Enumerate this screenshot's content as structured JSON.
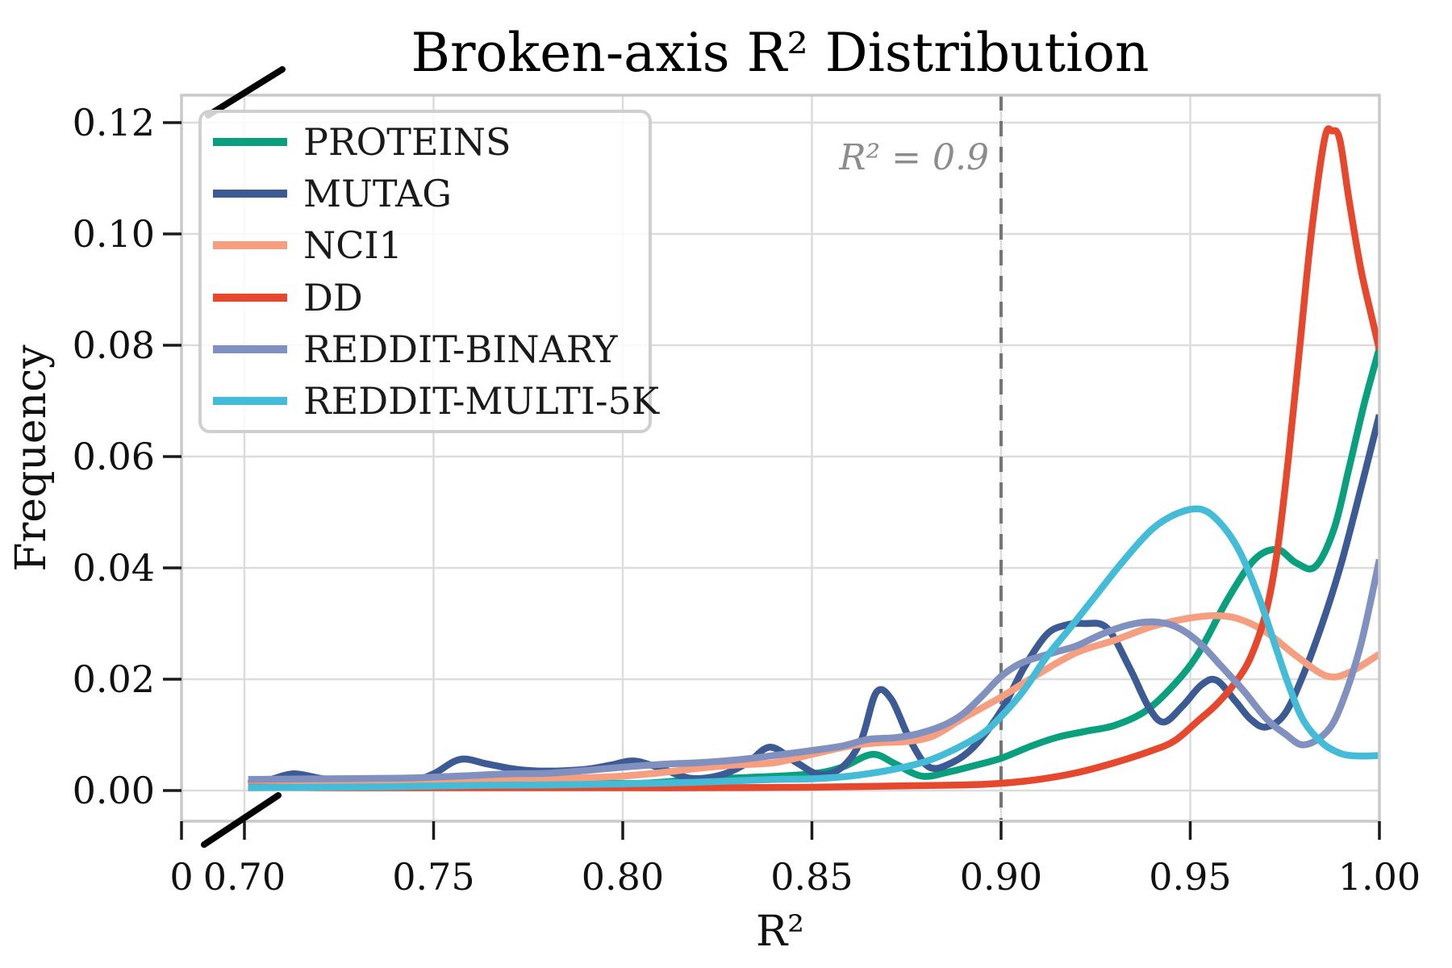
{
  "chart_data": {
    "type": "line",
    "title": "Broken-axis R² Distribution",
    "xlabel": "R²",
    "ylabel": "Frequency",
    "grid": true,
    "legend_position": "upper-left",
    "x_axis": {
      "broken": true,
      "zero_label": "0",
      "break_between": [
        0,
        0.7
      ],
      "range": [
        0.7,
        1.0
      ],
      "ticks": [
        0.7,
        0.75,
        0.8,
        0.85,
        0.9,
        0.95,
        1.0
      ],
      "tick_labels": [
        "0.70",
        "0.75",
        "0.80",
        "0.85",
        "0.90",
        "0.95",
        "1.00"
      ]
    },
    "y_axis": {
      "range": [
        0.0,
        0.12
      ],
      "ticks": [
        0.0,
        0.02,
        0.04,
        0.06,
        0.08,
        0.1,
        0.12
      ],
      "tick_labels": [
        "0.00",
        "0.02",
        "0.04",
        "0.06",
        "0.08",
        "0.10",
        "0.12"
      ]
    },
    "reference_line": {
      "x": 0.9,
      "style": "dashed",
      "color": "#757575",
      "label": "R² = 0.9",
      "label_color": "#8c8c8c"
    },
    "series": [
      {
        "name": "PROTEINS",
        "color": "#0aa07e",
        "points": [
          [
            0.701,
            0.0008
          ],
          [
            0.72,
            0.0009
          ],
          [
            0.74,
            0.001
          ],
          [
            0.76,
            0.0012
          ],
          [
            0.775,
            0.0015
          ],
          [
            0.79,
            0.0014
          ],
          [
            0.805,
            0.0013
          ],
          [
            0.82,
            0.002
          ],
          [
            0.835,
            0.0024
          ],
          [
            0.85,
            0.003
          ],
          [
            0.858,
            0.0042
          ],
          [
            0.866,
            0.0065
          ],
          [
            0.872,
            0.0048
          ],
          [
            0.879,
            0.0026
          ],
          [
            0.886,
            0.0033
          ],
          [
            0.893,
            0.0045
          ],
          [
            0.9,
            0.0058
          ],
          [
            0.908,
            0.008
          ],
          [
            0.915,
            0.0096
          ],
          [
            0.922,
            0.0106
          ],
          [
            0.93,
            0.0117
          ],
          [
            0.938,
            0.0142
          ],
          [
            0.945,
            0.0185
          ],
          [
            0.952,
            0.0245
          ],
          [
            0.96,
            0.0345
          ],
          [
            0.967,
            0.0415
          ],
          [
            0.973,
            0.0433
          ],
          [
            0.978,
            0.0409
          ],
          [
            0.983,
            0.0402
          ],
          [
            0.988,
            0.047
          ],
          [
            0.992,
            0.058
          ],
          [
            0.996,
            0.0695
          ],
          [
            1.0,
            0.0795
          ]
        ]
      },
      {
        "name": "MUTAG",
        "color": "#3c5a94",
        "points": [
          [
            0.701,
            0.0012
          ],
          [
            0.707,
            0.002
          ],
          [
            0.713,
            0.003
          ],
          [
            0.72,
            0.0022
          ],
          [
            0.728,
            0.0014
          ],
          [
            0.736,
            0.0012
          ],
          [
            0.744,
            0.0016
          ],
          [
            0.75,
            0.003
          ],
          [
            0.757,
            0.0056
          ],
          [
            0.764,
            0.0048
          ],
          [
            0.772,
            0.0038
          ],
          [
            0.78,
            0.0035
          ],
          [
            0.79,
            0.0038
          ],
          [
            0.797,
            0.0046
          ],
          [
            0.803,
            0.0053
          ],
          [
            0.81,
            0.004
          ],
          [
            0.818,
            0.0022
          ],
          [
            0.826,
            0.0028
          ],
          [
            0.833,
            0.005
          ],
          [
            0.839,
            0.0078
          ],
          [
            0.846,
            0.005
          ],
          [
            0.852,
            0.0029
          ],
          [
            0.858,
            0.0042
          ],
          [
            0.863,
            0.009
          ],
          [
            0.867,
            0.0176
          ],
          [
            0.871,
            0.0164
          ],
          [
            0.876,
            0.009
          ],
          [
            0.881,
            0.0042
          ],
          [
            0.887,
            0.005
          ],
          [
            0.893,
            0.008
          ],
          [
            0.9,
            0.0143
          ],
          [
            0.906,
            0.022
          ],
          [
            0.912,
            0.028
          ],
          [
            0.917,
            0.0297
          ],
          [
            0.922,
            0.03
          ],
          [
            0.928,
            0.0292
          ],
          [
            0.934,
            0.022
          ],
          [
            0.939,
            0.015
          ],
          [
            0.943,
            0.0123
          ],
          [
            0.948,
            0.0152
          ],
          [
            0.953,
            0.019
          ],
          [
            0.957,
            0.0198
          ],
          [
            0.962,
            0.016
          ],
          [
            0.966,
            0.0128
          ],
          [
            0.97,
            0.0114
          ],
          [
            0.975,
            0.0138
          ],
          [
            0.98,
            0.021
          ],
          [
            0.985,
            0.0302
          ],
          [
            0.99,
            0.041
          ],
          [
            0.995,
            0.054
          ],
          [
            1.0,
            0.0675
          ]
        ]
      },
      {
        "name": "NCI1",
        "color": "#f59e80",
        "points": [
          [
            0.701,
            0.0012
          ],
          [
            0.72,
            0.0014
          ],
          [
            0.74,
            0.0016
          ],
          [
            0.75,
            0.0018
          ],
          [
            0.76,
            0.0021
          ],
          [
            0.775,
            0.0022
          ],
          [
            0.79,
            0.0023
          ],
          [
            0.8,
            0.0026
          ],
          [
            0.81,
            0.0032
          ],
          [
            0.82,
            0.004
          ],
          [
            0.83,
            0.0046
          ],
          [
            0.84,
            0.005
          ],
          [
            0.85,
            0.0065
          ],
          [
            0.86,
            0.008
          ],
          [
            0.868,
            0.0086
          ],
          [
            0.875,
            0.0088
          ],
          [
            0.882,
            0.0098
          ],
          [
            0.89,
            0.013
          ],
          [
            0.9,
            0.0168
          ],
          [
            0.91,
            0.021
          ],
          [
            0.92,
            0.0248
          ],
          [
            0.93,
            0.027
          ],
          [
            0.94,
            0.0295
          ],
          [
            0.95,
            0.031
          ],
          [
            0.957,
            0.0314
          ],
          [
            0.963,
            0.0308
          ],
          [
            0.97,
            0.0285
          ],
          [
            0.978,
            0.0242
          ],
          [
            0.986,
            0.0206
          ],
          [
            0.992,
            0.0212
          ],
          [
            1.0,
            0.0245
          ]
        ]
      },
      {
        "name": "DD",
        "color": "#e6482e",
        "points": [
          [
            0.701,
            0.0006
          ],
          [
            0.73,
            0.0005
          ],
          [
            0.76,
            0.0005
          ],
          [
            0.79,
            0.0005
          ],
          [
            0.82,
            0.0005
          ],
          [
            0.85,
            0.0006
          ],
          [
            0.87,
            0.0008
          ],
          [
            0.89,
            0.001
          ],
          [
            0.9,
            0.0013
          ],
          [
            0.91,
            0.002
          ],
          [
            0.92,
            0.0032
          ],
          [
            0.93,
            0.005
          ],
          [
            0.94,
            0.0072
          ],
          [
            0.946,
            0.009
          ],
          [
            0.952,
            0.0125
          ],
          [
            0.957,
            0.0155
          ],
          [
            0.962,
            0.0195
          ],
          [
            0.966,
            0.024
          ],
          [
            0.97,
            0.032
          ],
          [
            0.973,
            0.043
          ],
          [
            0.976,
            0.06
          ],
          [
            0.979,
            0.08
          ],
          [
            0.982,
            0.1
          ],
          [
            0.9855,
            0.117
          ],
          [
            0.9875,
            0.1185
          ],
          [
            0.9895,
            0.117
          ],
          [
            0.992,
            0.106
          ],
          [
            0.995,
            0.094
          ],
          [
            0.998,
            0.085
          ],
          [
            1.0,
            0.0792
          ]
        ]
      },
      {
        "name": "REDDIT-BINARY",
        "color": "#8191bf",
        "points": [
          [
            0.701,
            0.002
          ],
          [
            0.72,
            0.0021
          ],
          [
            0.74,
            0.0022
          ],
          [
            0.75,
            0.0024
          ],
          [
            0.76,
            0.0027
          ],
          [
            0.77,
            0.003
          ],
          [
            0.78,
            0.0031
          ],
          [
            0.79,
            0.0036
          ],
          [
            0.8,
            0.0042
          ],
          [
            0.81,
            0.0047
          ],
          [
            0.82,
            0.005
          ],
          [
            0.83,
            0.0055
          ],
          [
            0.84,
            0.0063
          ],
          [
            0.85,
            0.0072
          ],
          [
            0.858,
            0.008
          ],
          [
            0.865,
            0.0092
          ],
          [
            0.872,
            0.0095
          ],
          [
            0.878,
            0.0102
          ],
          [
            0.885,
            0.0118
          ],
          [
            0.89,
            0.0138
          ],
          [
            0.895,
            0.017
          ],
          [
            0.9,
            0.0205
          ],
          [
            0.905,
            0.0228
          ],
          [
            0.91,
            0.024
          ],
          [
            0.915,
            0.025
          ],
          [
            0.92,
            0.026
          ],
          [
            0.927,
            0.0282
          ],
          [
            0.934,
            0.0298
          ],
          [
            0.94,
            0.0303
          ],
          [
            0.946,
            0.0295
          ],
          [
            0.952,
            0.0268
          ],
          [
            0.958,
            0.0225
          ],
          [
            0.964,
            0.018
          ],
          [
            0.97,
            0.013
          ],
          [
            0.975,
            0.0102
          ],
          [
            0.98,
            0.0082
          ],
          [
            0.986,
            0.0105
          ],
          [
            0.99,
            0.0155
          ],
          [
            0.995,
            0.026
          ],
          [
            1.0,
            0.0415
          ]
        ]
      },
      {
        "name": "REDDIT-MULTI-5K",
        "color": "#44bcd8",
        "points": [
          [
            0.701,
            0.0005
          ],
          [
            0.72,
            0.0006
          ],
          [
            0.74,
            0.0007
          ],
          [
            0.76,
            0.0009
          ],
          [
            0.78,
            0.001
          ],
          [
            0.8,
            0.0012
          ],
          [
            0.82,
            0.0015
          ],
          [
            0.84,
            0.002
          ],
          [
            0.85,
            0.0021
          ],
          [
            0.86,
            0.0026
          ],
          [
            0.87,
            0.0036
          ],
          [
            0.88,
            0.0052
          ],
          [
            0.888,
            0.0075
          ],
          [
            0.895,
            0.0102
          ],
          [
            0.9,
            0.0133
          ],
          [
            0.906,
            0.018
          ],
          [
            0.912,
            0.024
          ],
          [
            0.918,
            0.029
          ],
          [
            0.925,
            0.035
          ],
          [
            0.932,
            0.041
          ],
          [
            0.94,
            0.047
          ],
          [
            0.947,
            0.0499
          ],
          [
            0.953,
            0.0505
          ],
          [
            0.958,
            0.048
          ],
          [
            0.963,
            0.043
          ],
          [
            0.968,
            0.035
          ],
          [
            0.972,
            0.027
          ],
          [
            0.976,
            0.019
          ],
          [
            0.98,
            0.0125
          ],
          [
            0.985,
            0.0085
          ],
          [
            0.99,
            0.0066
          ],
          [
            0.995,
            0.0062
          ],
          [
            1.0,
            0.0063
          ]
        ]
      }
    ],
    "style_colors": {
      "gridline": "#dcdcdc",
      "spine": "#c9c9c9",
      "tick": "#1a1a1a",
      "legend_border": "#cfcfcf",
      "break_mark": "#000000"
    }
  }
}
